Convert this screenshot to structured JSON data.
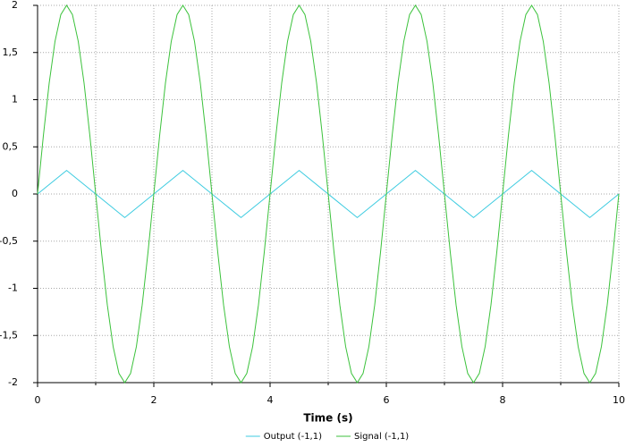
{
  "chart_data": {
    "type": "line",
    "xlabel": "Time (s)",
    "xlim": [
      0,
      10
    ],
    "ylim": [
      -2,
      2
    ],
    "xticks": [
      0,
      2,
      4,
      6,
      8,
      10
    ],
    "x_minor_ticks": [
      1,
      3,
      5,
      7,
      9
    ],
    "yticks": [
      -2,
      {
        "value": -1.5,
        "label": "-1,5"
      },
      -1,
      {
        "value": -0.5,
        "label": "-0,5"
      },
      0,
      {
        "value": 0.5,
        "label": "0,5"
      },
      1,
      {
        "value": 1.5,
        "label": "1,5"
      },
      2
    ],
    "grid": true,
    "legend": "bottom",
    "series": [
      {
        "name": "Output (-1,1)",
        "color": "#3ccbe0",
        "x": [
          0,
          0.5,
          1.5,
          2.5,
          3.5,
          4.5,
          5.5,
          6.5,
          7.5,
          8.5,
          9.5,
          10
        ],
        "values": [
          0,
          0.25,
          -0.25,
          0.25,
          -0.25,
          0.25,
          -0.25,
          0.25,
          -0.25,
          0.25,
          -0.25,
          0
        ]
      },
      {
        "name": "Signal (-1,1)",
        "color": "#3cc23c",
        "x": [
          0,
          0.1,
          0.2,
          0.3,
          0.4,
          0.5,
          0.6,
          0.7,
          0.8,
          0.9,
          1,
          1.1,
          1.2,
          1.3,
          1.4,
          1.5,
          1.6,
          1.7,
          1.8,
          1.9,
          2,
          2.1,
          2.2,
          2.3,
          2.4,
          2.5,
          2.6,
          2.7,
          2.8,
          2.9,
          3,
          3.1,
          3.2,
          3.3,
          3.4,
          3.5,
          3.6,
          3.7,
          3.8,
          3.9,
          4,
          4.1,
          4.2,
          4.3,
          4.4,
          4.5,
          4.6,
          4.7,
          4.8,
          4.9,
          5,
          5.1,
          5.2,
          5.3,
          5.4,
          5.5,
          5.6,
          5.7,
          5.8,
          5.9,
          6,
          6.1,
          6.2,
          6.3,
          6.4,
          6.5,
          6.6,
          6.7,
          6.8,
          6.9,
          7,
          7.1,
          7.2,
          7.3,
          7.4,
          7.5,
          7.6,
          7.7,
          7.8,
          7.9,
          8,
          8.1,
          8.2,
          8.3,
          8.4,
          8.5,
          8.6,
          8.7,
          8.8,
          8.9,
          9,
          9.1,
          9.2,
          9.3,
          9.4,
          9.5,
          9.6,
          9.7,
          9.8,
          9.9,
          10
        ],
        "values": [
          0,
          0.618,
          1.176,
          1.618,
          1.902,
          2,
          1.902,
          1.618,
          1.176,
          0.618,
          0,
          -0.618,
          -1.176,
          -1.618,
          -1.902,
          -2,
          -1.902,
          -1.618,
          -1.176,
          -0.618,
          0,
          0.618,
          1.176,
          1.618,
          1.902,
          2,
          1.902,
          1.618,
          1.176,
          0.618,
          0,
          -0.618,
          -1.176,
          -1.618,
          -1.902,
          -2,
          -1.902,
          -1.618,
          -1.176,
          -0.618,
          0,
          0.618,
          1.176,
          1.618,
          1.902,
          2,
          1.902,
          1.618,
          1.176,
          0.618,
          0,
          -0.618,
          -1.176,
          -1.618,
          -1.902,
          -2,
          -1.902,
          -1.618,
          -1.176,
          -0.618,
          0,
          0.618,
          1.176,
          1.618,
          1.902,
          2,
          1.902,
          1.618,
          1.176,
          0.618,
          0,
          -0.618,
          -1.176,
          -1.618,
          -1.902,
          -2,
          -1.902,
          -1.618,
          -1.176,
          -0.618,
          0,
          0.618,
          1.176,
          1.618,
          1.902,
          2,
          1.902,
          1.618,
          1.176,
          0.618,
          0,
          -0.618,
          -1.176,
          -1.618,
          -1.902,
          -2,
          -1.902,
          -1.618,
          -1.176,
          -0.618,
          0
        ]
      }
    ]
  }
}
